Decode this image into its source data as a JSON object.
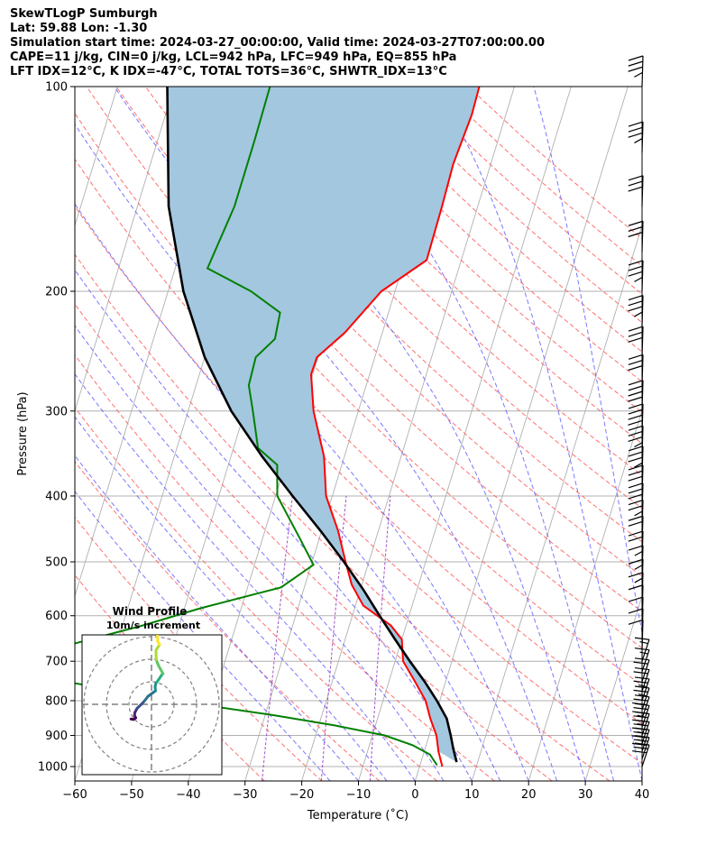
{
  "header": {
    "lines": [
      "SkewTLogP Sumburgh",
      "Lat: 59.88   Lon: -1.30",
      "Simulation start time: 2024-03-27_00:00:00, Valid time: 2024-03-27T07:00:00.00",
      "CAPE=11 j/kg, CIN=0 j/kg, LCL=942 hPa, LFC=949 hPa, EQ=855 hPa",
      "LFT IDX=12°C, K IDX=-47°C, TOTAL TOTS=36°C, SHWTR_IDX=13°C"
    ]
  },
  "chart_data": {
    "type": "line",
    "subtype": "skew-t log-p",
    "xlabel": "Temperature (˚C)",
    "ylabel": "Pressure (hPa)",
    "x_ticks": [
      -60,
      -50,
      -40,
      -30,
      -20,
      -10,
      0,
      10,
      20,
      30,
      40
    ],
    "y_ticks": [
      100,
      200,
      300,
      400,
      500,
      600,
      700,
      800,
      900,
      1000
    ],
    "xlim": [
      -60,
      40
    ],
    "ylim": [
      1050,
      100
    ],
    "y_scale": "log",
    "grid": true,
    "colors": {
      "temperature": "#ff0000",
      "dewpoint": "#008000",
      "parcel": "#000000",
      "cape_fill": "#a3c7df",
      "dry_adiabat": "#ff6060",
      "moist_adiabat": "#6060ff",
      "mixing_ratio": "#a050c8",
      "isotherm": "#b0b0b0"
    },
    "series": [
      {
        "key": "temperature",
        "points": [
          [
            100,
            -26.2
          ],
          [
            110,
            -26.0
          ],
          [
            130,
            -26.6
          ],
          [
            150,
            -26.3
          ],
          [
            180,
            -26.1
          ],
          [
            200,
            -32.4
          ],
          [
            230,
            -36.6
          ],
          [
            250,
            -40.2
          ],
          [
            265,
            -40.3
          ],
          [
            300,
            -37.9
          ],
          [
            350,
            -33.6
          ],
          [
            400,
            -31.1
          ],
          [
            450,
            -27.1
          ],
          [
            500,
            -24.1
          ],
          [
            540,
            -21.8
          ],
          [
            580,
            -18.6
          ],
          [
            620,
            -12.7
          ],
          [
            650,
            -10.0
          ],
          [
            700,
            -8.6
          ],
          [
            750,
            -5.4
          ],
          [
            800,
            -2.5
          ],
          [
            850,
            -0.7
          ],
          [
            900,
            1.3
          ],
          [
            950,
            2.5
          ],
          [
            1000,
            4.0
          ]
        ]
      },
      {
        "key": "dewpoint",
        "points": [
          [
            100,
            -63.1
          ],
          [
            120,
            -62.9
          ],
          [
            150,
            -62.9
          ],
          [
            185,
            -64.3
          ],
          [
            200,
            -55.4
          ],
          [
            215,
            -49.1
          ],
          [
            235,
            -48.6
          ],
          [
            250,
            -51.0
          ],
          [
            275,
            -50.7
          ],
          [
            300,
            -48.6
          ],
          [
            340,
            -45.7
          ],
          [
            360,
            -41.4
          ],
          [
            400,
            -39.7
          ],
          [
            460,
            -33.6
          ],
          [
            505,
            -29.6
          ],
          [
            545,
            -34.1
          ],
          [
            585,
            -47.2
          ],
          [
            620,
            -56.4
          ],
          [
            660,
            -67.7
          ],
          [
            700,
            -79.0
          ],
          [
            750,
            -67.0
          ],
          [
            800,
            -46.8
          ],
          [
            840,
            -28.7
          ],
          [
            870,
            -17.2
          ],
          [
            900,
            -7.8
          ],
          [
            930,
            -2.4
          ],
          [
            960,
            1.2
          ],
          [
            980,
            2.2
          ],
          [
            995,
            3.0
          ]
        ]
      },
      {
        "key": "parcel",
        "points": [
          [
            100,
            -81.2
          ],
          [
            150,
            -74.5
          ],
          [
            200,
            -67.3
          ],
          [
            250,
            -60.0
          ],
          [
            300,
            -52.4
          ],
          [
            350,
            -44.5
          ],
          [
            400,
            -37.0
          ],
          [
            450,
            -30.2
          ],
          [
            500,
            -24.4
          ],
          [
            550,
            -19.4
          ],
          [
            600,
            -15.2
          ],
          [
            650,
            -11.2
          ],
          [
            700,
            -7.4
          ],
          [
            750,
            -3.7
          ],
          [
            800,
            -0.5
          ],
          [
            850,
            2.2
          ],
          [
            900,
            3.8
          ],
          [
            942,
            5.0
          ],
          [
            985,
            6.3
          ]
        ]
      }
    ],
    "wind_barbs": [
      {
        "p": 100,
        "speed_kt": 35
      },
      {
        "p": 125,
        "speed_kt": 35
      },
      {
        "p": 150,
        "speed_kt": 30
      },
      {
        "p": 175,
        "speed_kt": 30
      },
      {
        "p": 200,
        "speed_kt": 35
      },
      {
        "p": 225,
        "speed_kt": 35
      },
      {
        "p": 250,
        "speed_kt": 30
      },
      {
        "p": 275,
        "speed_kt": 30
      },
      {
        "p": 300,
        "speed_kt": 40
      },
      {
        "p": 325,
        "speed_kt": 40
      },
      {
        "p": 350,
        "speed_kt": 35
      },
      {
        "p": 375,
        "speed_kt": 35
      },
      {
        "p": 400,
        "speed_kt": 30
      },
      {
        "p": 425,
        "speed_kt": 30
      },
      {
        "p": 450,
        "speed_kt": 25
      },
      {
        "p": 475,
        "speed_kt": 20
      },
      {
        "p": 500,
        "speed_kt": 20
      },
      {
        "p": 525,
        "speed_kt": 15
      },
      {
        "p": 550,
        "speed_kt": 15
      },
      {
        "p": 575,
        "speed_kt": 15
      },
      {
        "p": 600,
        "speed_kt": 10
      },
      {
        "p": 625,
        "speed_kt": 10
      },
      {
        "p": 650,
        "speed_kt": 10
      },
      {
        "p": 675,
        "speed_kt": 10
      },
      {
        "p": 700,
        "speed_kt": 15
      },
      {
        "p": 725,
        "speed_kt": 15
      },
      {
        "p": 750,
        "speed_kt": 20
      },
      {
        "p": 775,
        "speed_kt": 20
      },
      {
        "p": 800,
        "speed_kt": 25
      },
      {
        "p": 825,
        "speed_kt": 25
      },
      {
        "p": 850,
        "speed_kt": 30
      },
      {
        "p": 875,
        "speed_kt": 35
      },
      {
        "p": 900,
        "speed_kt": 35
      },
      {
        "p": 925,
        "speed_kt": 35
      },
      {
        "p": 950,
        "speed_kt": 35
      },
      {
        "p": 975,
        "speed_kt": 30
      },
      {
        "p": 1000,
        "speed_kt": 30
      }
    ],
    "hodograph": {
      "title": "Wind Profile",
      "subtitle": "10m/s increment",
      "ring_radii_ms": [
        10,
        20,
        30
      ],
      "points_ms": [
        [
          -9.1,
          -6.5
        ],
        [
          -8.0,
          -6.7
        ],
        [
          -7.0,
          -6.0
        ],
        [
          -7.5,
          -5.0
        ],
        [
          -7.4,
          -3.7
        ],
        [
          -6.4,
          -1.8
        ],
        [
          -4.4,
          0.1
        ],
        [
          -3.2,
          1.4
        ],
        [
          -1.6,
          3.5
        ],
        [
          1.8,
          6.0
        ],
        [
          1.6,
          7.8
        ],
        [
          2.0,
          9.5
        ],
        [
          2.5,
          10.0
        ],
        [
          4.6,
          13.1
        ],
        [
          5.1,
          13.6
        ],
        [
          3.0,
          17.4
        ],
        [
          2.1,
          19.8
        ],
        [
          2.0,
          24.0
        ],
        [
          3.6,
          26.5
        ],
        [
          2.7,
          28.0
        ],
        [
          2.7,
          30.5
        ]
      ]
    }
  }
}
